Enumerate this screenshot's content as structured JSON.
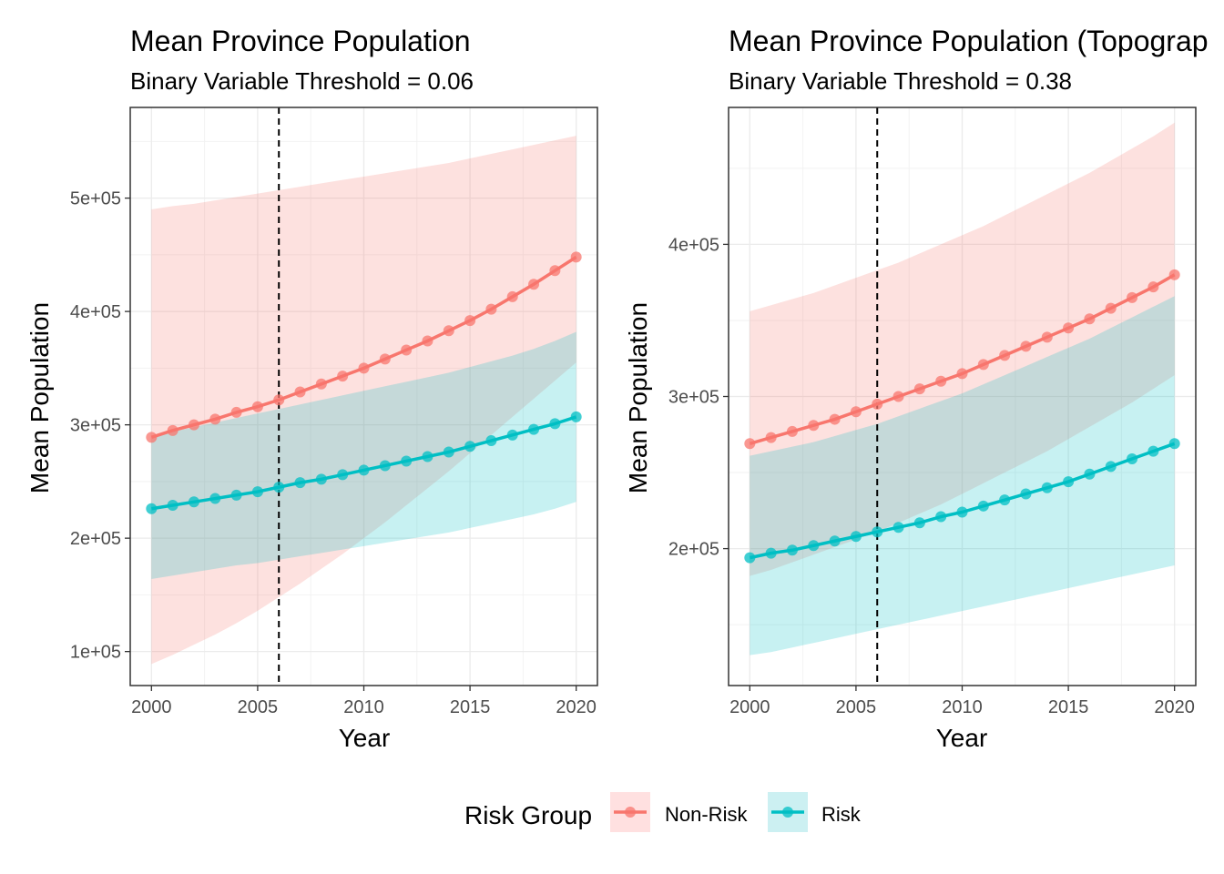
{
  "chart_data": [
    {
      "type": "line",
      "title": "Mean Province Population",
      "subtitle": "Binary Variable Threshold = 0.06",
      "xlabel": "Year",
      "ylabel": "Mean Population",
      "xlim": [
        1999,
        2021
      ],
      "ylim": [
        70000,
        580000
      ],
      "x_ticks": [
        2000,
        2005,
        2010,
        2015,
        2020
      ],
      "y_ticks": [
        100000,
        200000,
        300000,
        400000,
        500000
      ],
      "y_tick_labels": [
        "1e+05",
        "2e+05",
        "3e+05",
        "4e+05",
        "5e+05"
      ],
      "grid": true,
      "vline": 2006,
      "x": [
        2000,
        2001,
        2002,
        2003,
        2004,
        2005,
        2006,
        2007,
        2008,
        2009,
        2010,
        2011,
        2012,
        2013,
        2014,
        2015,
        2016,
        2017,
        2018,
        2019,
        2020
      ],
      "series": [
        {
          "name": "Non-Risk",
          "color": "#F8766D",
          "values": [
            289000,
            295000,
            300000,
            305000,
            311000,
            316000,
            322000,
            329000,
            336000,
            343000,
            350000,
            358000,
            366000,
            374000,
            383000,
            392000,
            402000,
            413000,
            424000,
            436000,
            448000
          ],
          "lower": [
            89000,
            97000,
            106000,
            115000,
            125000,
            136000,
            148000,
            160000,
            173000,
            186000,
            200000,
            214000,
            229000,
            244000,
            259000,
            275000,
            291000,
            307000,
            323000,
            339000,
            355000
          ],
          "upper": [
            490000,
            493000,
            495000,
            498000,
            501000,
            504000,
            507000,
            510000,
            513000,
            516000,
            519000,
            522000,
            525000,
            528000,
            531000,
            535000,
            539000,
            543000,
            547000,
            551000,
            555000
          ]
        },
        {
          "name": "Risk",
          "color": "#00BFC4",
          "values": [
            226000,
            229000,
            232000,
            235000,
            238000,
            241000,
            245000,
            249000,
            252000,
            256000,
            260000,
            264000,
            268000,
            272000,
            276000,
            281000,
            286000,
            291000,
            296000,
            301000,
            307000
          ],
          "lower": [
            164000,
            167000,
            170000,
            173000,
            176000,
            178000,
            181000,
            184000,
            187000,
            190000,
            193000,
            196000,
            199000,
            202000,
            205000,
            209000,
            213000,
            217000,
            221000,
            226000,
            232000
          ],
          "upper": [
            290000,
            294000,
            298000,
            302000,
            306000,
            310000,
            314000,
            318000,
            322000,
            326000,
            330000,
            334000,
            338000,
            342000,
            346000,
            351000,
            356000,
            361000,
            367000,
            374000,
            382000
          ]
        }
      ]
    },
    {
      "type": "line",
      "title": "Mean Province Population (Topograp",
      "subtitle": "Binary Variable Threshold = 0.38",
      "xlabel": "Year",
      "ylabel": "Mean Population",
      "xlim": [
        1999,
        2021
      ],
      "ylim": [
        110000,
        490000
      ],
      "x_ticks": [
        2000,
        2005,
        2010,
        2015,
        2020
      ],
      "y_ticks": [
        200000,
        300000,
        400000
      ],
      "y_tick_labels": [
        "2e+05",
        "3e+05",
        "4e+05"
      ],
      "grid": true,
      "vline": 2006,
      "x": [
        2000,
        2001,
        2002,
        2003,
        2004,
        2005,
        2006,
        2007,
        2008,
        2009,
        2010,
        2011,
        2012,
        2013,
        2014,
        2015,
        2016,
        2017,
        2018,
        2019,
        2020
      ],
      "series": [
        {
          "name": "Non-Risk",
          "color": "#F8766D",
          "values": [
            269000,
            273000,
            277000,
            281000,
            285000,
            290000,
            295000,
            300000,
            305000,
            310000,
            315000,
            321000,
            327000,
            333000,
            339000,
            345000,
            351000,
            358000,
            365000,
            372000,
            380000
          ],
          "lower": [
            182000,
            186000,
            191000,
            196000,
            201000,
            206000,
            211000,
            217000,
            223000,
            229000,
            236000,
            243000,
            250000,
            257000,
            264000,
            272000,
            280000,
            288000,
            296000,
            305000,
            314000
          ],
          "upper": [
            356000,
            360000,
            364000,
            368000,
            373000,
            378000,
            383000,
            388000,
            394000,
            400000,
            406000,
            412000,
            419000,
            426000,
            433000,
            440000,
            447000,
            455000,
            463000,
            471000,
            480000
          ]
        },
        {
          "name": "Risk",
          "color": "#00BFC4",
          "values": [
            194000,
            197000,
            199000,
            202000,
            205000,
            208000,
            211000,
            214000,
            217000,
            221000,
            224000,
            228000,
            232000,
            236000,
            240000,
            244000,
            249000,
            254000,
            259000,
            264000,
            269000
          ],
          "lower": [
            130000,
            132000,
            135000,
            138000,
            141000,
            144000,
            147000,
            150000,
            153000,
            156000,
            159000,
            162000,
            165000,
            168000,
            171000,
            174000,
            177000,
            180000,
            183000,
            186000,
            189000
          ],
          "upper": [
            261000,
            264000,
            267000,
            270000,
            274000,
            278000,
            282000,
            287000,
            292000,
            297000,
            302000,
            308000,
            314000,
            320000,
            326000,
            332000,
            338000,
            345000,
            352000,
            359000,
            366000
          ]
        }
      ]
    }
  ],
  "legend": {
    "title": "Risk Group",
    "position": "bottom",
    "items": [
      {
        "label": "Non-Risk",
        "color": "#F8766D"
      },
      {
        "label": "Risk",
        "color": "#00BFC4"
      }
    ]
  }
}
